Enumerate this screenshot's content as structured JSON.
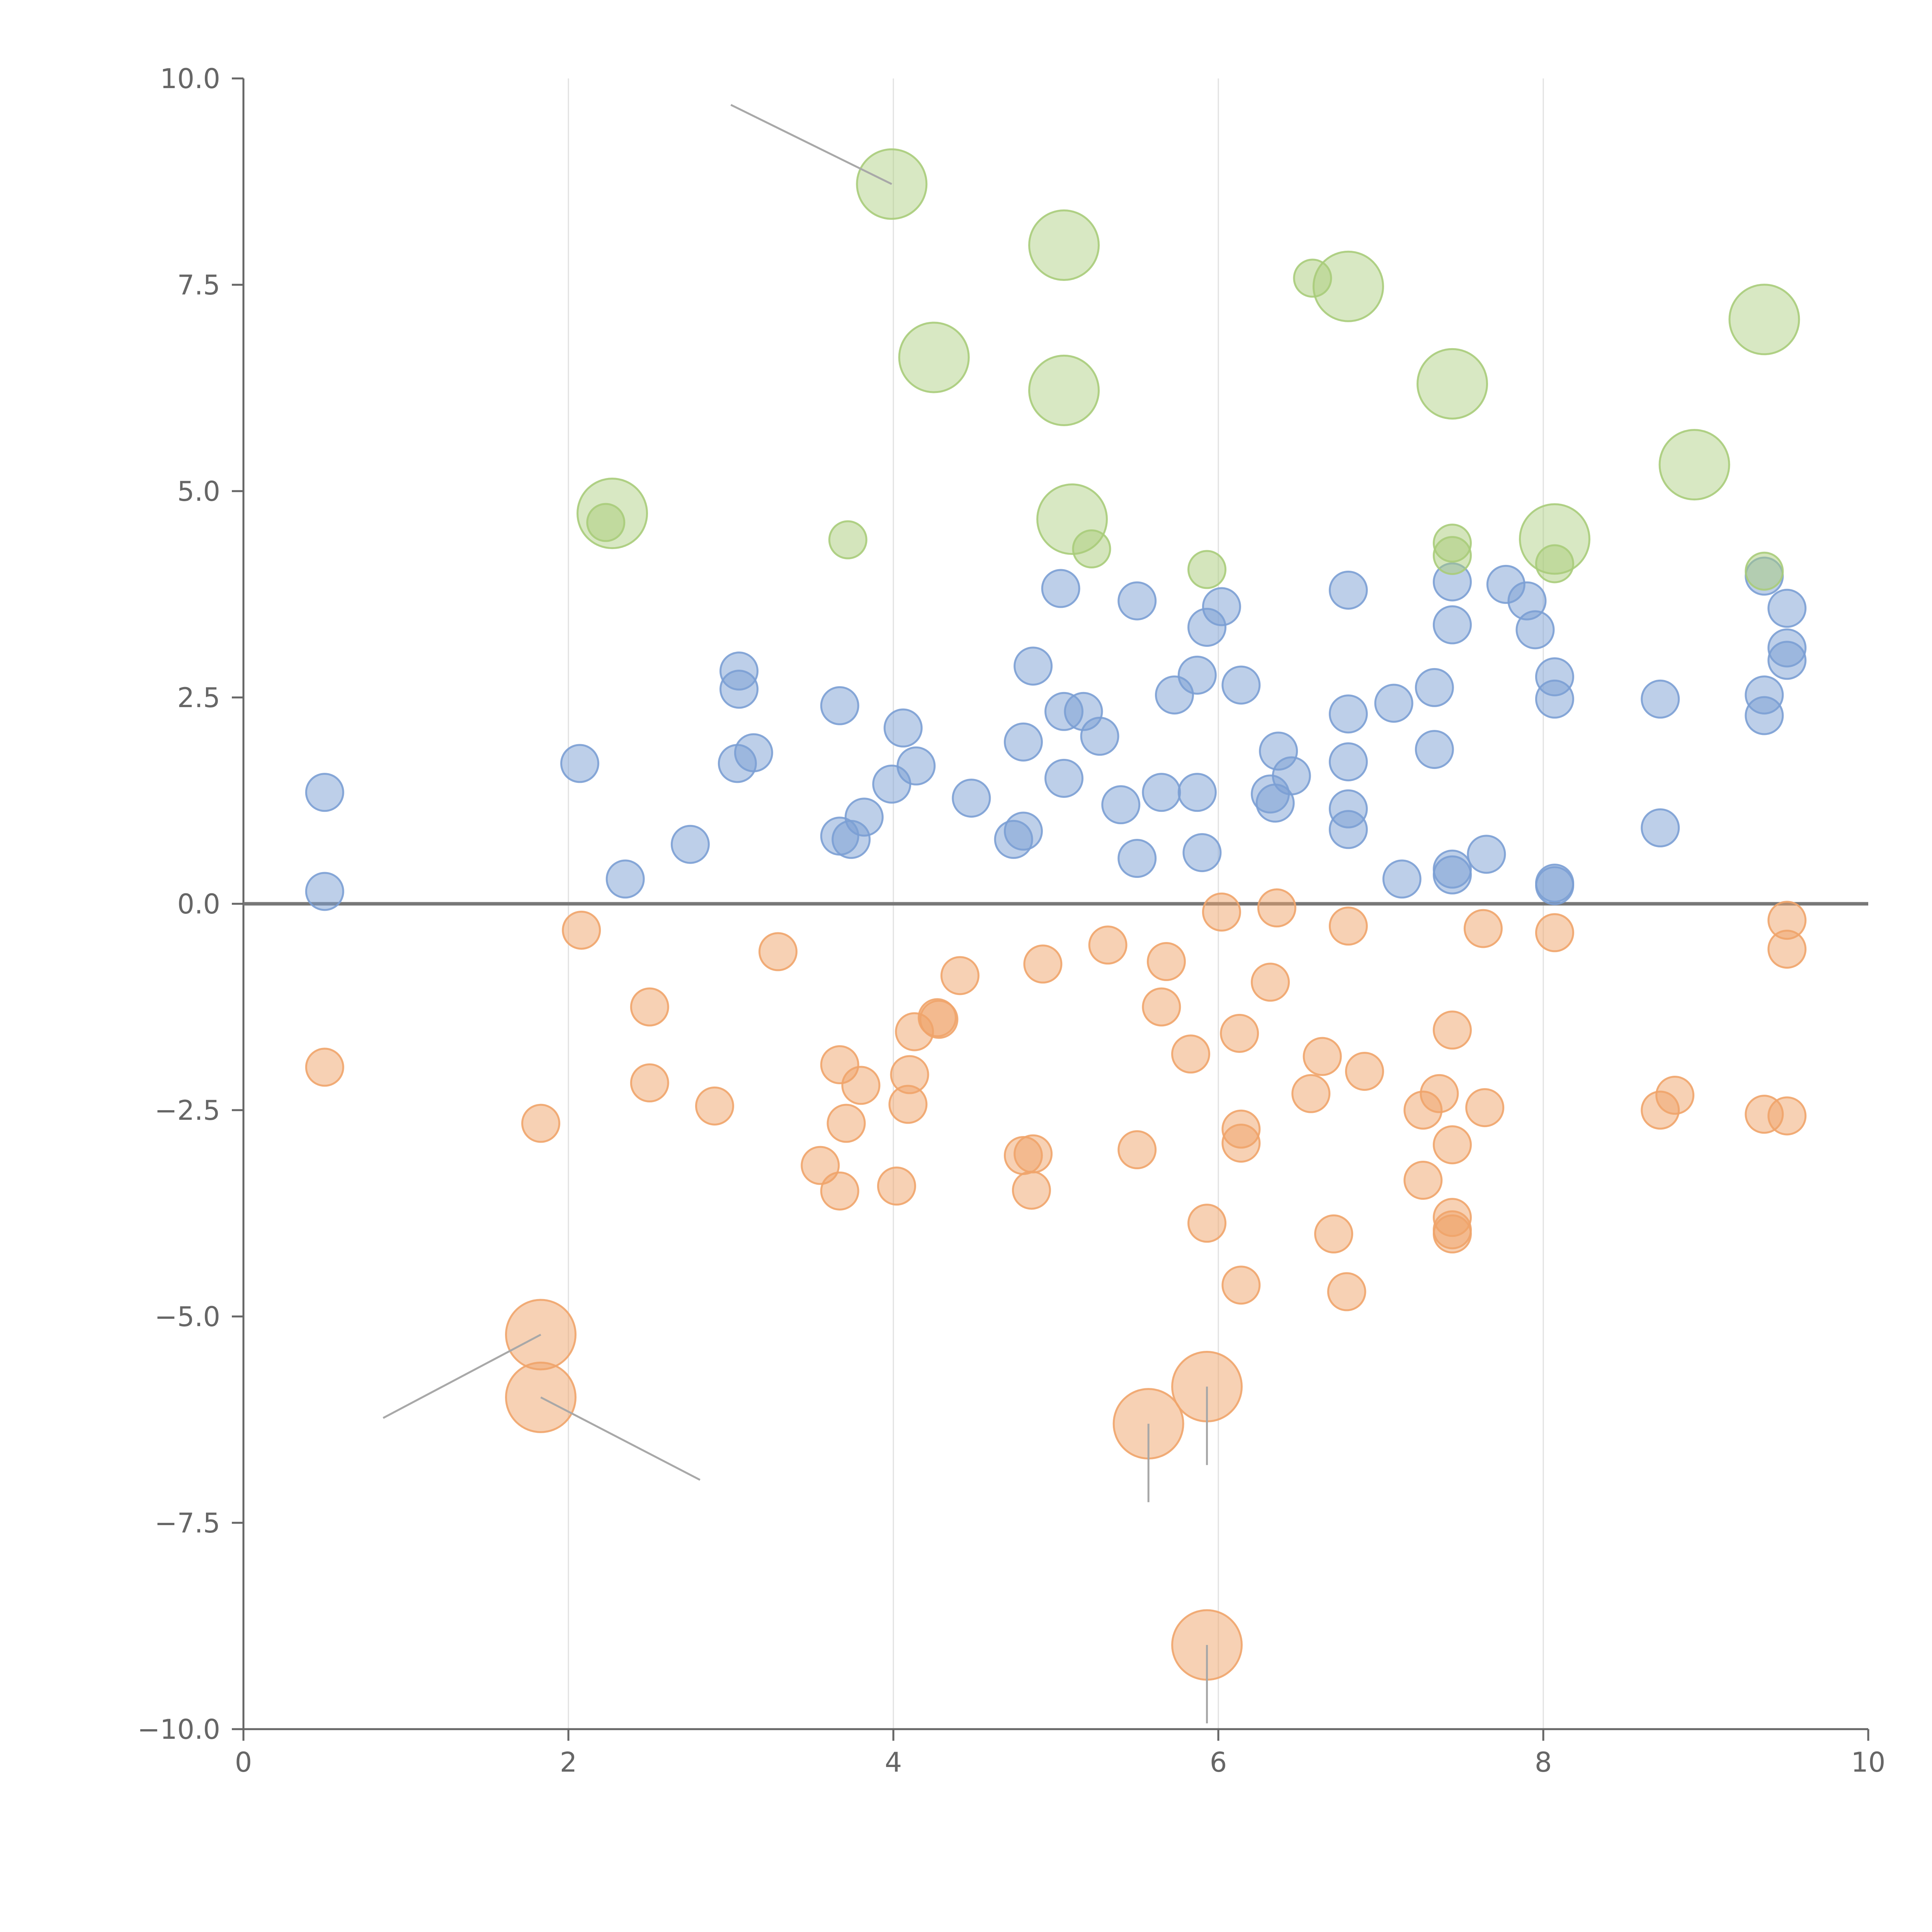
{
  "chart_data": {
    "type": "scatter",
    "xlim": [
      0,
      10
    ],
    "ylim": [
      -10,
      10
    ],
    "x_ticks": [
      "0",
      "2",
      "4",
      "6",
      "8",
      "10"
    ],
    "y_ticks": [
      "10.0",
      "7.5",
      "5.0",
      "2.5",
      "0.0",
      "−2.5",
      "−5.0",
      "−7.5",
      "−10.0"
    ],
    "x_tick_values": [
      0,
      2,
      4,
      6,
      8,
      10
    ],
    "y_tick_values": [
      10,
      7.5,
      5,
      2.5,
      0,
      -2.5,
      -5,
      -7.5,
      -10
    ],
    "grid": "vertical",
    "reference_line_y": 0,
    "colors": {
      "positive": "#7b9fd4",
      "negative": "#f0a46a",
      "highlight": "#a9cc7a"
    },
    "series": [
      {
        "color_key": "positive",
        "points": [
          [
            0.5,
            1.35
          ],
          [
            0.5,
            0.15
          ],
          [
            2.07,
            1.7
          ],
          [
            2.35,
            0.3
          ],
          [
            2.75,
            0.72
          ],
          [
            3.05,
            2.82
          ],
          [
            3.05,
            2.6
          ],
          [
            3.04,
            1.7
          ],
          [
            3.14,
            1.83
          ],
          [
            3.67,
            2.4
          ],
          [
            3.67,
            0.82
          ],
          [
            3.74,
            0.78
          ],
          [
            3.82,
            1.05
          ],
          [
            3.99,
            1.45
          ],
          [
            4.06,
            2.13
          ],
          [
            4.14,
            1.67
          ],
          [
            4.48,
            1.28
          ],
          [
            4.74,
            0.78
          ],
          [
            4.8,
            0.88
          ],
          [
            4.8,
            1.96
          ],
          [
            4.86,
            2.88
          ],
          [
            5.03,
            3.82
          ],
          [
            5.05,
            2.33
          ],
          [
            5.05,
            1.52
          ],
          [
            5.17,
            2.33
          ],
          [
            5.27,
            2.03
          ],
          [
            5.4,
            1.2
          ],
          [
            5.5,
            3.67
          ],
          [
            5.5,
            0.55
          ],
          [
            5.65,
            1.35
          ],
          [
            5.73,
            2.53
          ],
          [
            5.87,
            2.77
          ],
          [
            5.87,
            1.35
          ],
          [
            5.93,
            3.35
          ],
          [
            5.9,
            0.62
          ],
          [
            6.02,
            3.6
          ],
          [
            6.14,
            2.65
          ],
          [
            6.32,
            1.33
          ],
          [
            6.35,
            1.22
          ],
          [
            6.37,
            1.85
          ],
          [
            6.45,
            1.55
          ],
          [
            6.8,
            3.8
          ],
          [
            6.8,
            2.3
          ],
          [
            6.8,
            1.72
          ],
          [
            6.8,
            1.15
          ],
          [
            6.8,
            0.9
          ],
          [
            7.08,
            2.43
          ],
          [
            7.13,
            0.3
          ],
          [
            7.33,
            2.62
          ],
          [
            7.33,
            1.87
          ],
          [
            7.44,
            3.9
          ],
          [
            7.44,
            3.38
          ],
          [
            7.44,
            0.42
          ],
          [
            7.44,
            0.35
          ],
          [
            7.65,
            0.6
          ],
          [
            7.77,
            3.87
          ],
          [
            7.9,
            3.67
          ],
          [
            7.95,
            3.32
          ],
          [
            8.07,
            2.75
          ],
          [
            8.07,
            2.48
          ],
          [
            8.07,
            0.25
          ],
          [
            8.07,
            0.22
          ],
          [
            8.72,
            2.48
          ],
          [
            8.72,
            0.92
          ],
          [
            9.36,
            3.97
          ],
          [
            9.36,
            2.53
          ],
          [
            9.36,
            2.28
          ],
          [
            9.5,
            3.58
          ],
          [
            9.5,
            3.1
          ],
          [
            9.5,
            2.95
          ]
        ]
      },
      {
        "color_key": "negative",
        "points": [
          [
            0.5,
            -1.98
          ],
          [
            1.83,
            -2.66
          ],
          [
            2.08,
            -0.32
          ],
          [
            2.5,
            -1.25
          ],
          [
            2.5,
            -2.17
          ],
          [
            2.9,
            -2.45
          ],
          [
            3.29,
            -0.58
          ],
          [
            3.55,
            -3.17
          ],
          [
            3.67,
            -1.95
          ],
          [
            3.67,
            -3.48
          ],
          [
            3.71,
            -2.66
          ],
          [
            3.8,
            -2.2
          ],
          [
            4.02,
            -3.42
          ],
          [
            4.09,
            -2.43
          ],
          [
            4.1,
            -2.07
          ],
          [
            4.13,
            -1.55
          ],
          [
            4.27,
            -1.38
          ],
          [
            4.28,
            -1.4
          ],
          [
            4.41,
            -0.87
          ],
          [
            4.8,
            -3.05
          ],
          [
            4.86,
            -3.03
          ],
          [
            4.85,
            -3.47
          ],
          [
            4.92,
            -0.73
          ],
          [
            5.32,
            -0.5
          ],
          [
            5.5,
            -2.98
          ],
          [
            5.65,
            -1.25
          ],
          [
            5.68,
            -0.7
          ],
          [
            5.83,
            -1.82
          ],
          [
            5.93,
            -3.87
          ],
          [
            6.02,
            -0.1
          ],
          [
            6.13,
            -1.57
          ],
          [
            6.14,
            -2.73
          ],
          [
            6.14,
            -2.9
          ],
          [
            6.14,
            -4.62
          ],
          [
            6.32,
            -0.95
          ],
          [
            6.36,
            -0.05
          ],
          [
            6.57,
            -2.3
          ],
          [
            6.64,
            -1.85
          ],
          [
            6.71,
            -4.0
          ],
          [
            6.79,
            -4.7
          ],
          [
            6.8,
            -0.27
          ],
          [
            6.9,
            -2.03
          ],
          [
            7.26,
            -2.5
          ],
          [
            7.26,
            -3.35
          ],
          [
            7.36,
            -2.3
          ],
          [
            7.44,
            -1.53
          ],
          [
            7.44,
            -2.92
          ],
          [
            7.44,
            -3.8
          ],
          [
            7.44,
            -3.95
          ],
          [
            7.44,
            -4.0
          ],
          [
            7.64,
            -2.47
          ],
          [
            7.63,
            -0.3
          ],
          [
            8.07,
            -0.35
          ],
          [
            8.72,
            -2.5
          ],
          [
            8.81,
            -2.32
          ],
          [
            9.36,
            -2.55
          ],
          [
            9.5,
            -0.2
          ],
          [
            9.5,
            -0.55
          ],
          [
            9.5,
            -2.57
          ]
        ]
      },
      {
        "color_key": "highlight",
        "points": [
          [
            2.23,
            4.62
          ],
          [
            3.72,
            4.41
          ],
          [
            5.22,
            4.3
          ],
          [
            5.93,
            4.05
          ],
          [
            6.58,
            7.58
          ],
          [
            7.44,
            4.37
          ],
          [
            7.44,
            4.22
          ],
          [
            8.07,
            4.12
          ],
          [
            9.36,
            4.03
          ]
        ]
      }
    ],
    "large_negative": [
      [
        1.83,
        -5.22
      ],
      [
        1.83,
        -5.98
      ],
      [
        5.57,
        -6.3
      ],
      [
        5.93,
        -5.85
      ],
      [
        5.93,
        -8.98
      ]
    ],
    "large_highlight": [
      [
        2.27,
        4.73
      ],
      [
        3.99,
        8.72
      ],
      [
        4.25,
        6.62
      ],
      [
        5.05,
        7.98
      ],
      [
        5.05,
        6.22
      ],
      [
        5.1,
        4.66
      ],
      [
        6.8,
        7.48
      ],
      [
        7.44,
        6.3
      ],
      [
        8.07,
        4.42
      ],
      [
        8.93,
        5.32
      ],
      [
        9.36,
        7.08
      ]
    ]
  }
}
